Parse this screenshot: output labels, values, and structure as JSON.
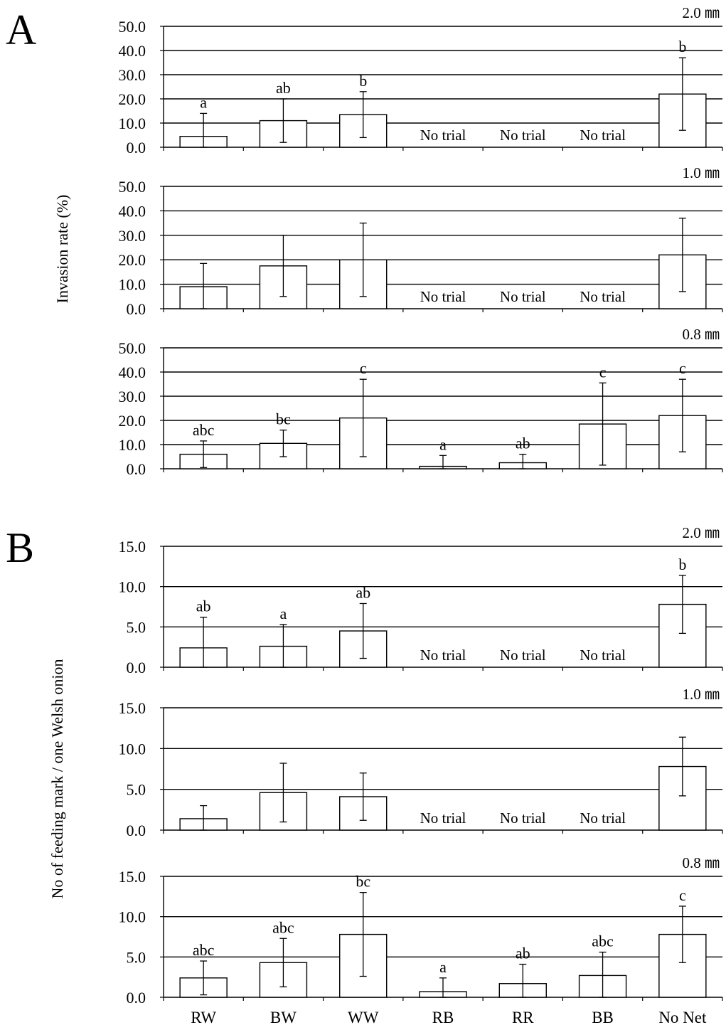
{
  "categories": [
    "RW",
    "BW",
    "WW",
    "RB",
    "RR",
    "BB",
    "No Net"
  ],
  "no_trial_text": "No trial",
  "chart_data": [
    {
      "panel": "A",
      "type": "bar",
      "ylabel": "Invasion rate (%)",
      "ylim": [
        0,
        50
      ],
      "yticks": [
        "0.0",
        "10.0",
        "20.0",
        "30.0",
        "40.0",
        "50.0"
      ],
      "grid": "horizontal",
      "subplots": [
        {
          "size_label": "2.0 ㎜",
          "categories": [
            "RW",
            "BW",
            "WW",
            "RB",
            "RR",
            "BB",
            "No Net"
          ],
          "values": [
            4.5,
            11.0,
            13.5,
            null,
            null,
            null,
            22.0
          ],
          "error": [
            9.5,
            9.0,
            9.5,
            null,
            null,
            null,
            15.0
          ],
          "letters": [
            "a",
            "ab",
            "b",
            "",
            "",
            "",
            "b"
          ],
          "no_trial": [
            false,
            false,
            false,
            true,
            true,
            true,
            false
          ]
        },
        {
          "size_label": "1.0 ㎜",
          "categories": [
            "RW",
            "BW",
            "WW",
            "RB",
            "RR",
            "BB",
            "No Net"
          ],
          "values": [
            9.0,
            17.5,
            20.0,
            null,
            null,
            null,
            22.0
          ],
          "error": [
            9.5,
            12.5,
            15.0,
            null,
            null,
            null,
            15.0
          ],
          "letters": [
            "",
            "",
            "",
            "",
            "",
            "",
            ""
          ],
          "no_trial": [
            false,
            false,
            false,
            true,
            true,
            true,
            false
          ]
        },
        {
          "size_label": "0.8 ㎜",
          "categories": [
            "RW",
            "BW",
            "WW",
            "RB",
            "RR",
            "BB",
            "No Net"
          ],
          "values": [
            6.0,
            10.5,
            21.0,
            1.0,
            2.5,
            18.5,
            22.0
          ],
          "error": [
            5.5,
            5.5,
            16.0,
            4.5,
            3.5,
            17.0,
            15.0
          ],
          "letters": [
            "abc",
            "bc",
            "c",
            "a",
            "ab",
            "c",
            "c"
          ],
          "no_trial": [
            false,
            false,
            false,
            false,
            false,
            false,
            false
          ]
        }
      ]
    },
    {
      "panel": "B",
      "type": "bar",
      "ylabel": "No of feeding mark / one Welsh onion",
      "ylim": [
        0,
        15
      ],
      "yticks": [
        "0.0",
        "5.0",
        "10.0",
        "15.0"
      ],
      "grid": "horizontal",
      "subplots": [
        {
          "size_label": "2.0 ㎜",
          "categories": [
            "RW",
            "BW",
            "WW",
            "RB",
            "RR",
            "BB",
            "No Net"
          ],
          "values": [
            2.4,
            2.6,
            4.5,
            null,
            null,
            null,
            7.8
          ],
          "error": [
            3.8,
            2.7,
            3.4,
            null,
            null,
            null,
            3.6
          ],
          "letters": [
            "ab",
            "a",
            "ab",
            "",
            "",
            "",
            "b"
          ],
          "no_trial": [
            false,
            false,
            false,
            true,
            true,
            true,
            false
          ]
        },
        {
          "size_label": "1.0 ㎜",
          "categories": [
            "RW",
            "BW",
            "WW",
            "RB",
            "RR",
            "BB",
            "No Net"
          ],
          "values": [
            1.4,
            4.6,
            4.1,
            null,
            null,
            null,
            7.8
          ],
          "error": [
            1.6,
            3.6,
            2.9,
            null,
            null,
            null,
            3.6
          ],
          "letters": [
            "",
            "",
            "",
            "",
            "",
            "",
            ""
          ],
          "no_trial": [
            false,
            false,
            false,
            true,
            true,
            true,
            false
          ]
        },
        {
          "size_label": "0.8 ㎜",
          "categories": [
            "RW",
            "BW",
            "WW",
            "RB",
            "RR",
            "BB",
            "No Net"
          ],
          "values": [
            2.4,
            4.3,
            7.8,
            0.7,
            1.7,
            2.7,
            7.8
          ],
          "error": [
            2.1,
            3.0,
            5.2,
            1.7,
            2.4,
            2.9,
            3.5
          ],
          "letters": [
            "abc",
            "abc",
            "bc",
            "a",
            "ab",
            "abc",
            "c"
          ],
          "no_trial": [
            false,
            false,
            false,
            false,
            false,
            false,
            false
          ]
        }
      ]
    }
  ]
}
